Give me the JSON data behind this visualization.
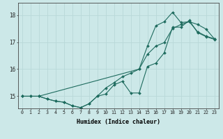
{
  "title": "",
  "xlabel": "Humidex (Indice chaleur)",
  "ylabel": "",
  "xlim": [
    -0.5,
    23.5
  ],
  "ylim": [
    14.55,
    18.45
  ],
  "yticks": [
    15,
    16,
    17,
    18
  ],
  "xticks": [
    0,
    1,
    2,
    3,
    4,
    5,
    6,
    7,
    8,
    9,
    10,
    11,
    12,
    13,
    14,
    15,
    16,
    17,
    18,
    19,
    20,
    21,
    22,
    23
  ],
  "background_color": "#cce8e8",
  "grid_color": "#b8d8d8",
  "line_color": "#1e6b5e",
  "figsize": [
    3.2,
    2.0
  ],
  "dpi": 100,
  "line1_x": [
    0,
    1,
    2,
    3,
    4,
    5,
    6,
    7,
    8,
    9,
    10,
    11,
    12,
    13,
    14,
    15,
    16,
    17,
    18,
    19,
    20,
    21,
    22,
    23
  ],
  "line1_y": [
    15.0,
    15.0,
    15.0,
    14.9,
    14.82,
    14.78,
    14.65,
    14.58,
    14.72,
    15.0,
    15.08,
    15.42,
    15.55,
    15.12,
    15.12,
    16.1,
    16.22,
    16.6,
    17.55,
    17.55,
    17.8,
    17.35,
    17.2,
    17.1
  ],
  "line2_x": [
    0,
    1,
    2,
    3,
    4,
    5,
    6,
    7,
    8,
    9,
    10,
    11,
    12,
    13,
    14,
    15,
    16,
    17,
    18,
    19,
    20,
    21,
    22,
    23
  ],
  "line2_y": [
    15.0,
    15.0,
    15.0,
    14.9,
    14.82,
    14.78,
    14.65,
    14.58,
    14.72,
    15.0,
    15.3,
    15.5,
    15.72,
    15.85,
    16.0,
    16.55,
    16.85,
    16.98,
    17.5,
    17.65,
    17.75,
    17.65,
    17.48,
    17.12
  ],
  "line3_x": [
    0,
    2,
    14,
    15,
    16,
    17,
    18,
    19,
    20,
    21,
    22,
    23
  ],
  "line3_y": [
    15.0,
    15.0,
    16.0,
    16.85,
    17.6,
    17.75,
    18.1,
    17.72,
    17.75,
    17.38,
    17.22,
    17.12
  ]
}
